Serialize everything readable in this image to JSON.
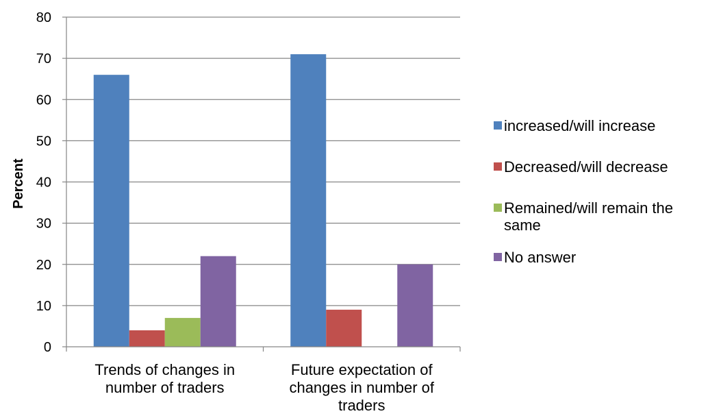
{
  "chart_data": {
    "type": "bar",
    "title": "",
    "xlabel": "",
    "ylabel": "Percent",
    "ylim": [
      0,
      80
    ],
    "yticks": [
      0,
      10,
      20,
      30,
      40,
      50,
      60,
      70,
      80
    ],
    "grid": "horizontal",
    "legend_position": "right",
    "categories": [
      "Trends of changes in number of traders",
      "Future expectation of changes in number of traders"
    ],
    "category_label_lines": [
      [
        "Trends of changes in",
        "number of traders"
      ],
      [
        "Future expectation of",
        "changes in number of",
        "traders"
      ]
    ],
    "series": [
      {
        "name": "increased/will increase",
        "legend_lines": [
          "increased/will increase"
        ],
        "color": "#4F81BD",
        "values": [
          66,
          71
        ]
      },
      {
        "name": "Decreased/will decrease",
        "legend_lines": [
          "Decreased/will decrease"
        ],
        "color": "#C0504D",
        "values": [
          4,
          9
        ]
      },
      {
        "name": "Remained/will remain the same",
        "legend_lines": [
          "Remained/will remain the",
          "same"
        ],
        "color": "#9BBB59",
        "values": [
          7,
          0
        ]
      },
      {
        "name": "No answer",
        "legend_lines": [
          "No answer"
        ],
        "color": "#8064A2",
        "values": [
          22,
          20
        ]
      }
    ]
  }
}
